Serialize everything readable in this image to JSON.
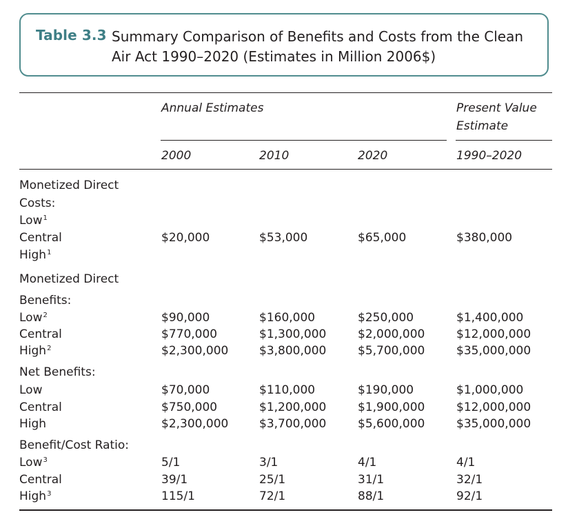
{
  "caption": {
    "label": "Table 3.3",
    "title": "Summary Comparison of Benefits and Costs from the Clean Air Act 1990–2020 (Estimates in Million 2006$)"
  },
  "headers": {
    "annual": "Annual Estimates",
    "present_value_line1": "Present Value",
    "present_value_line2": "Estimate",
    "year_2000": "2000",
    "year_2010": "2010",
    "year_2020": "2020",
    "years_pv": "1990–2020"
  },
  "sections": {
    "costs": {
      "heading_line1": "Monetized Direct",
      "heading_line2": "Costs:",
      "low": "Low",
      "low_note": "1",
      "central": "Central",
      "high": "High",
      "high_note": "1",
      "central_values": [
        "$20,000",
        "$53,000",
        "$65,000",
        "$380,000"
      ]
    },
    "benefits": {
      "heading_line1": "Monetized Direct",
      "heading_line2": "Benefits:",
      "low": "Low",
      "low_note": "2",
      "central": "Central",
      "high": "High",
      "high_note": "2",
      "low_values": [
        "$90,000",
        "$160,000",
        "$250,000",
        "$1,400,000"
      ],
      "central_values": [
        "$770,000",
        "$1,300,000",
        "$2,000,000",
        "$12,000,000"
      ],
      "high_values": [
        "$2,300,000",
        "$3,800,000",
        "$5,700,000",
        "$35,000,000"
      ]
    },
    "net": {
      "heading": "Net Benefits:",
      "low": "Low",
      "central": "Central",
      "high": "High",
      "low_values": [
        "$70,000",
        "$110,000",
        "$190,000",
        "$1,000,000"
      ],
      "central_values": [
        "$750,000",
        "$1,200,000",
        "$1,900,000",
        "$12,000,000"
      ],
      "high_values": [
        "$2,300,000",
        "$3,700,000",
        "$5,600,000",
        "$35,000,000"
      ]
    },
    "ratio": {
      "heading": "Benefit/Cost Ratio:",
      "low": "Low",
      "low_note": "3",
      "central": "Central",
      "high": "High",
      "high_note": "3",
      "low_values": [
        "5/1",
        "3/1",
        "4/1",
        "4/1"
      ],
      "central_values": [
        "39/1",
        "25/1",
        "31/1",
        "32/1"
      ],
      "high_values": [
        "115/1",
        "72/1",
        "88/1",
        "92/1"
      ]
    }
  }
}
